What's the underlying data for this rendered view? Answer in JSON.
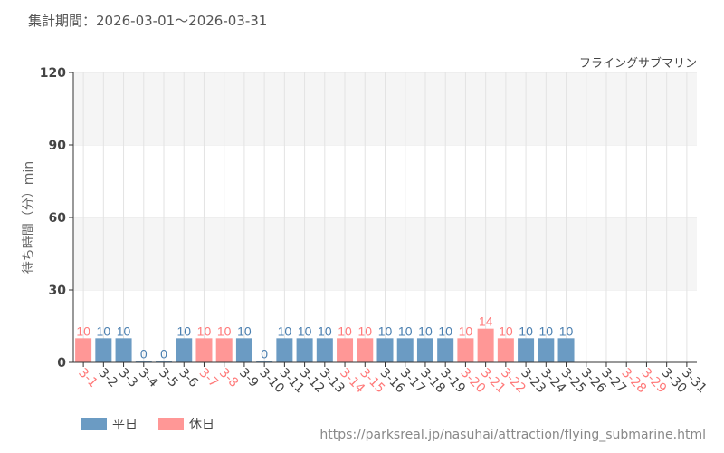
{
  "period_label": "集計期間：2026-03-01～2026-03-31",
  "url": "https://parksreal.jp/nasuhai/attraction/flying_submarine.html",
  "colors": {
    "weekday": "#6b9bc3",
    "holiday": "#ff9796",
    "weekday_text": "#4a7fb0",
    "holiday_text": "#ff7a7a"
  },
  "legend": [
    {
      "label": "平日",
      "key": "weekday"
    },
    {
      "label": "休日",
      "key": "holiday"
    }
  ],
  "chart_data": {
    "type": "bar",
    "title": "フライングサブマリン",
    "ylabel": "待ち時間（分）min",
    "xlabel": "",
    "ylim": [
      0,
      120
    ],
    "yticks": [
      0,
      30,
      60,
      90,
      120
    ],
    "categories": [
      "3-1",
      "3-2",
      "3-3",
      "3-4",
      "3-5",
      "3-6",
      "3-7",
      "3-8",
      "3-9",
      "3-10",
      "3-11",
      "3-12",
      "3-13",
      "3-14",
      "3-15",
      "3-16",
      "3-17",
      "3-18",
      "3-19",
      "3-20",
      "3-21",
      "3-22",
      "3-23",
      "3-24",
      "3-25",
      "3-26",
      "3-27",
      "3-28",
      "3-29",
      "3-30",
      "3-31"
    ],
    "holidays": [
      "3-1",
      "3-7",
      "3-8",
      "3-14",
      "3-15",
      "3-20",
      "3-21",
      "3-22",
      "3-28",
      "3-29"
    ],
    "values": [
      10,
      10,
      10,
      0,
      0,
      10,
      10,
      10,
      10,
      0,
      10,
      10,
      10,
      10,
      10,
      10,
      10,
      10,
      10,
      10,
      14,
      10,
      10,
      10,
      10,
      null,
      null,
      null,
      null,
      null,
      null
    ]
  }
}
